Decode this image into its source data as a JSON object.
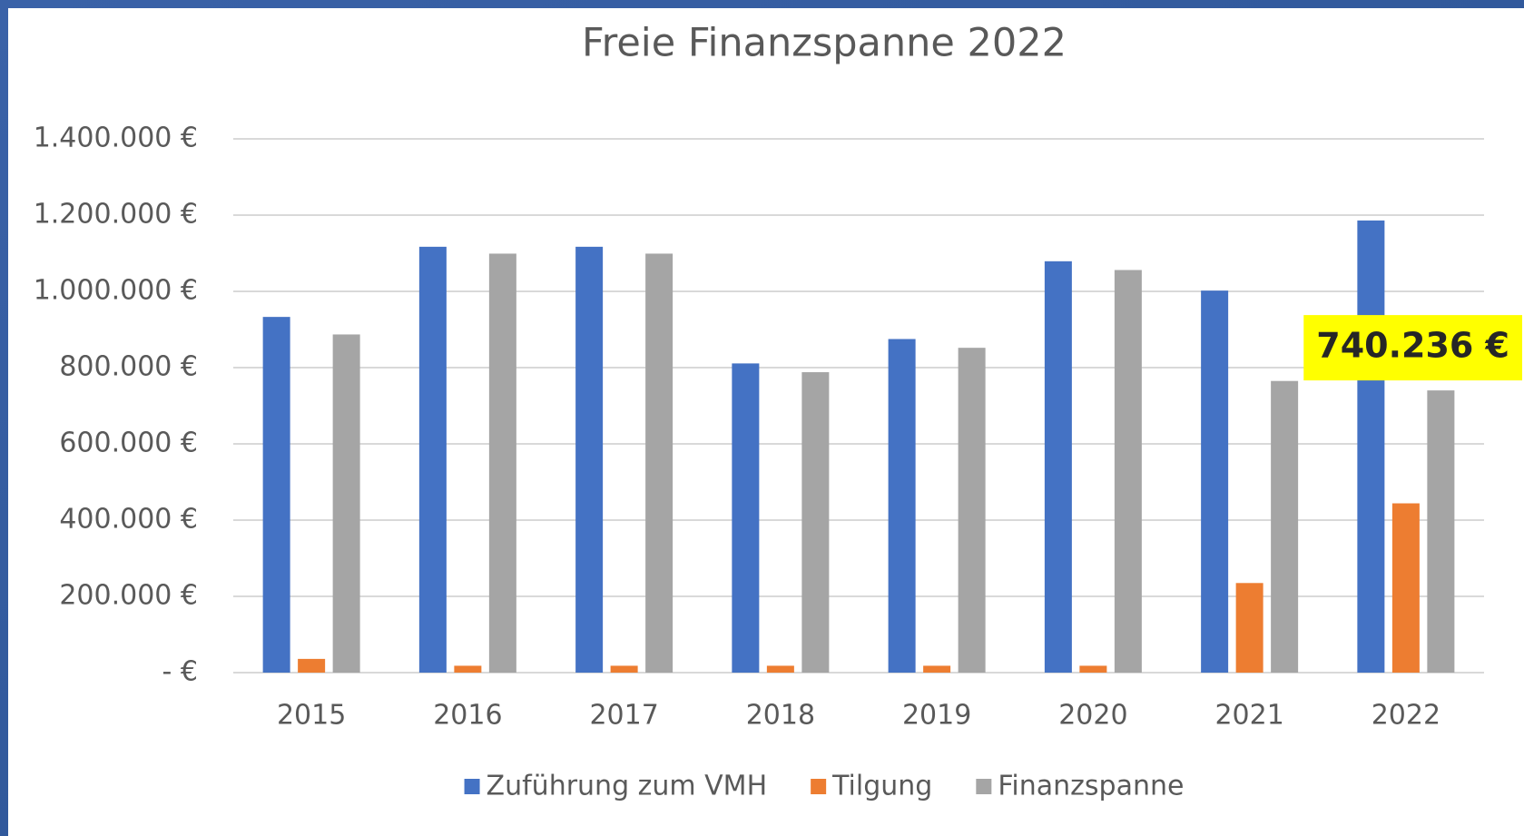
{
  "chart_data": {
    "type": "bar",
    "title": "Freie Finanzspanne 2022",
    "categories": [
      "2015",
      "2016",
      "2017",
      "2018",
      "2019",
      "2020",
      "2021",
      "2022"
    ],
    "series": [
      {
        "name": "Zuführung zum VMH",
        "color": "#4472c4",
        "values": [
          933000,
          1117000,
          1117000,
          811000,
          875000,
          1079000,
          1002000,
          1186000
        ]
      },
      {
        "name": "Tilgung",
        "color": "#ed7d31",
        "values": [
          36000,
          18000,
          18000,
          18000,
          18000,
          18000,
          235000,
          444000
        ]
      },
      {
        "name": "Finanzspanne",
        "color": "#a5a5a5",
        "values": [
          887000,
          1099000,
          1099000,
          788000,
          852000,
          1056000,
          765000,
          740236
        ],
        "value_labels": [
          null,
          null,
          null,
          null,
          null,
          null,
          null,
          "740.236 €"
        ]
      }
    ],
    "ylim": [
      0,
      1400000
    ],
    "yticks": [
      {
        "value": 0,
        "label": "-   €"
      },
      {
        "value": 200000,
        "label": "200.000 €"
      },
      {
        "value": 400000,
        "label": "400.000 €"
      },
      {
        "value": 600000,
        "label": "600.000 €"
      },
      {
        "value": 800000,
        "label": "800.000 €"
      },
      {
        "value": 1000000,
        "label": "1.000.000 €"
      },
      {
        "value": 1200000,
        "label": "1.200.000 €"
      },
      {
        "value": 1400000,
        "label": "1.400.000 €"
      }
    ],
    "grid": true,
    "legend": "bottom"
  }
}
